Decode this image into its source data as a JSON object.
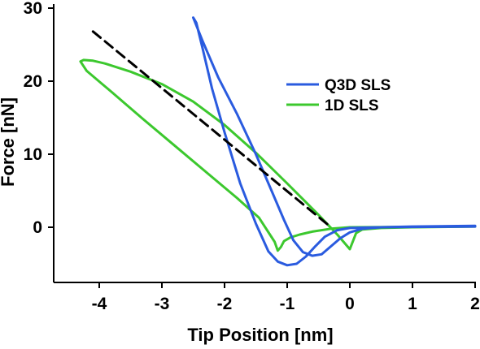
{
  "chart_data": {
    "type": "line",
    "xlabel": "Tip Position [nm]",
    "ylabel": "Force [nN]",
    "xlim": [
      -4.5,
      2
    ],
    "ylim": [
      -7.5,
      30
    ],
    "x_ticks": [
      "-4",
      "-3",
      "-2",
      "-1",
      "0",
      "1",
      "2"
    ],
    "y_ticks": [
      "0",
      "10",
      "20",
      "30"
    ],
    "grid": false,
    "legend_position": "upper-right",
    "series": [
      {
        "name": "Q3D SLS",
        "color": "#2a5bdf",
        "style": "solid",
        "points": [
          [
            2.0,
            0.2
          ],
          [
            1.0,
            0.1
          ],
          [
            0.5,
            0.0
          ],
          [
            0.2,
            -0.2
          ],
          [
            0.0,
            -0.7
          ],
          [
            -0.15,
            -1.5
          ],
          [
            -0.3,
            -2.6
          ],
          [
            -0.45,
            -3.7
          ],
          [
            -0.6,
            -3.9
          ],
          [
            -0.75,
            -3.4
          ],
          [
            -0.9,
            -1.8
          ],
          [
            -1.05,
            1.0
          ],
          [
            -1.25,
            5.0
          ],
          [
            -1.5,
            10.0
          ],
          [
            -1.8,
            15.5
          ],
          [
            -2.1,
            20.5
          ],
          [
            -2.35,
            25.5
          ],
          [
            -2.5,
            28.7
          ],
          [
            -2.45,
            28.0
          ],
          [
            -2.35,
            24.5
          ],
          [
            -2.2,
            19.0
          ],
          [
            -2.0,
            13.0
          ],
          [
            -1.75,
            6.0
          ],
          [
            -1.5,
            0.5
          ],
          [
            -1.3,
            -3.3
          ],
          [
            -1.15,
            -4.7
          ],
          [
            -1.0,
            -5.2
          ],
          [
            -0.85,
            -5.0
          ],
          [
            -0.7,
            -4.0
          ],
          [
            -0.55,
            -2.6
          ],
          [
            -0.4,
            -1.3
          ],
          [
            -0.2,
            -0.4
          ],
          [
            0.0,
            -0.1
          ],
          [
            0.5,
            0.0
          ],
          [
            1.0,
            0.05
          ],
          [
            2.0,
            0.1
          ]
        ]
      },
      {
        "name": "1D SLS",
        "color": "#3cc82e",
        "style": "solid",
        "points": [
          [
            2.0,
            0.1
          ],
          [
            1.0,
            0.0
          ],
          [
            0.5,
            -0.1
          ],
          [
            0.2,
            -0.3
          ],
          [
            0.1,
            -0.8
          ],
          [
            0.0,
            -3.0
          ],
          [
            -0.2,
            -1.0
          ],
          [
            -0.5,
            1.7
          ],
          [
            -1.0,
            6.0
          ],
          [
            -1.5,
            10.2
          ],
          [
            -2.0,
            14.0
          ],
          [
            -2.5,
            17.2
          ],
          [
            -3.0,
            19.6
          ],
          [
            -3.5,
            21.3
          ],
          [
            -3.9,
            22.4
          ],
          [
            -4.1,
            22.8
          ],
          [
            -4.25,
            22.9
          ],
          [
            -4.3,
            22.7
          ],
          [
            -4.2,
            21.4
          ],
          [
            -3.8,
            18.5
          ],
          [
            -3.3,
            14.8
          ],
          [
            -2.8,
            11.2
          ],
          [
            -2.3,
            7.6
          ],
          [
            -1.8,
            4.0
          ],
          [
            -1.45,
            1.3
          ],
          [
            -1.2,
            -2.0
          ],
          [
            -1.15,
            -3.2
          ],
          [
            -1.1,
            -2.7
          ],
          [
            -1.05,
            -1.9
          ],
          [
            -0.95,
            -1.4
          ],
          [
            -0.8,
            -1.0
          ],
          [
            -0.6,
            -0.6
          ],
          [
            -0.3,
            -0.2
          ],
          [
            0.0,
            0.0
          ],
          [
            1.0,
            0.05
          ],
          [
            2.0,
            0.1
          ]
        ]
      },
      {
        "name": "",
        "color": "#000000",
        "style": "dashed",
        "points": [
          [
            -4.1,
            26.8
          ],
          [
            -0.3,
            0.0
          ]
        ]
      }
    ]
  }
}
